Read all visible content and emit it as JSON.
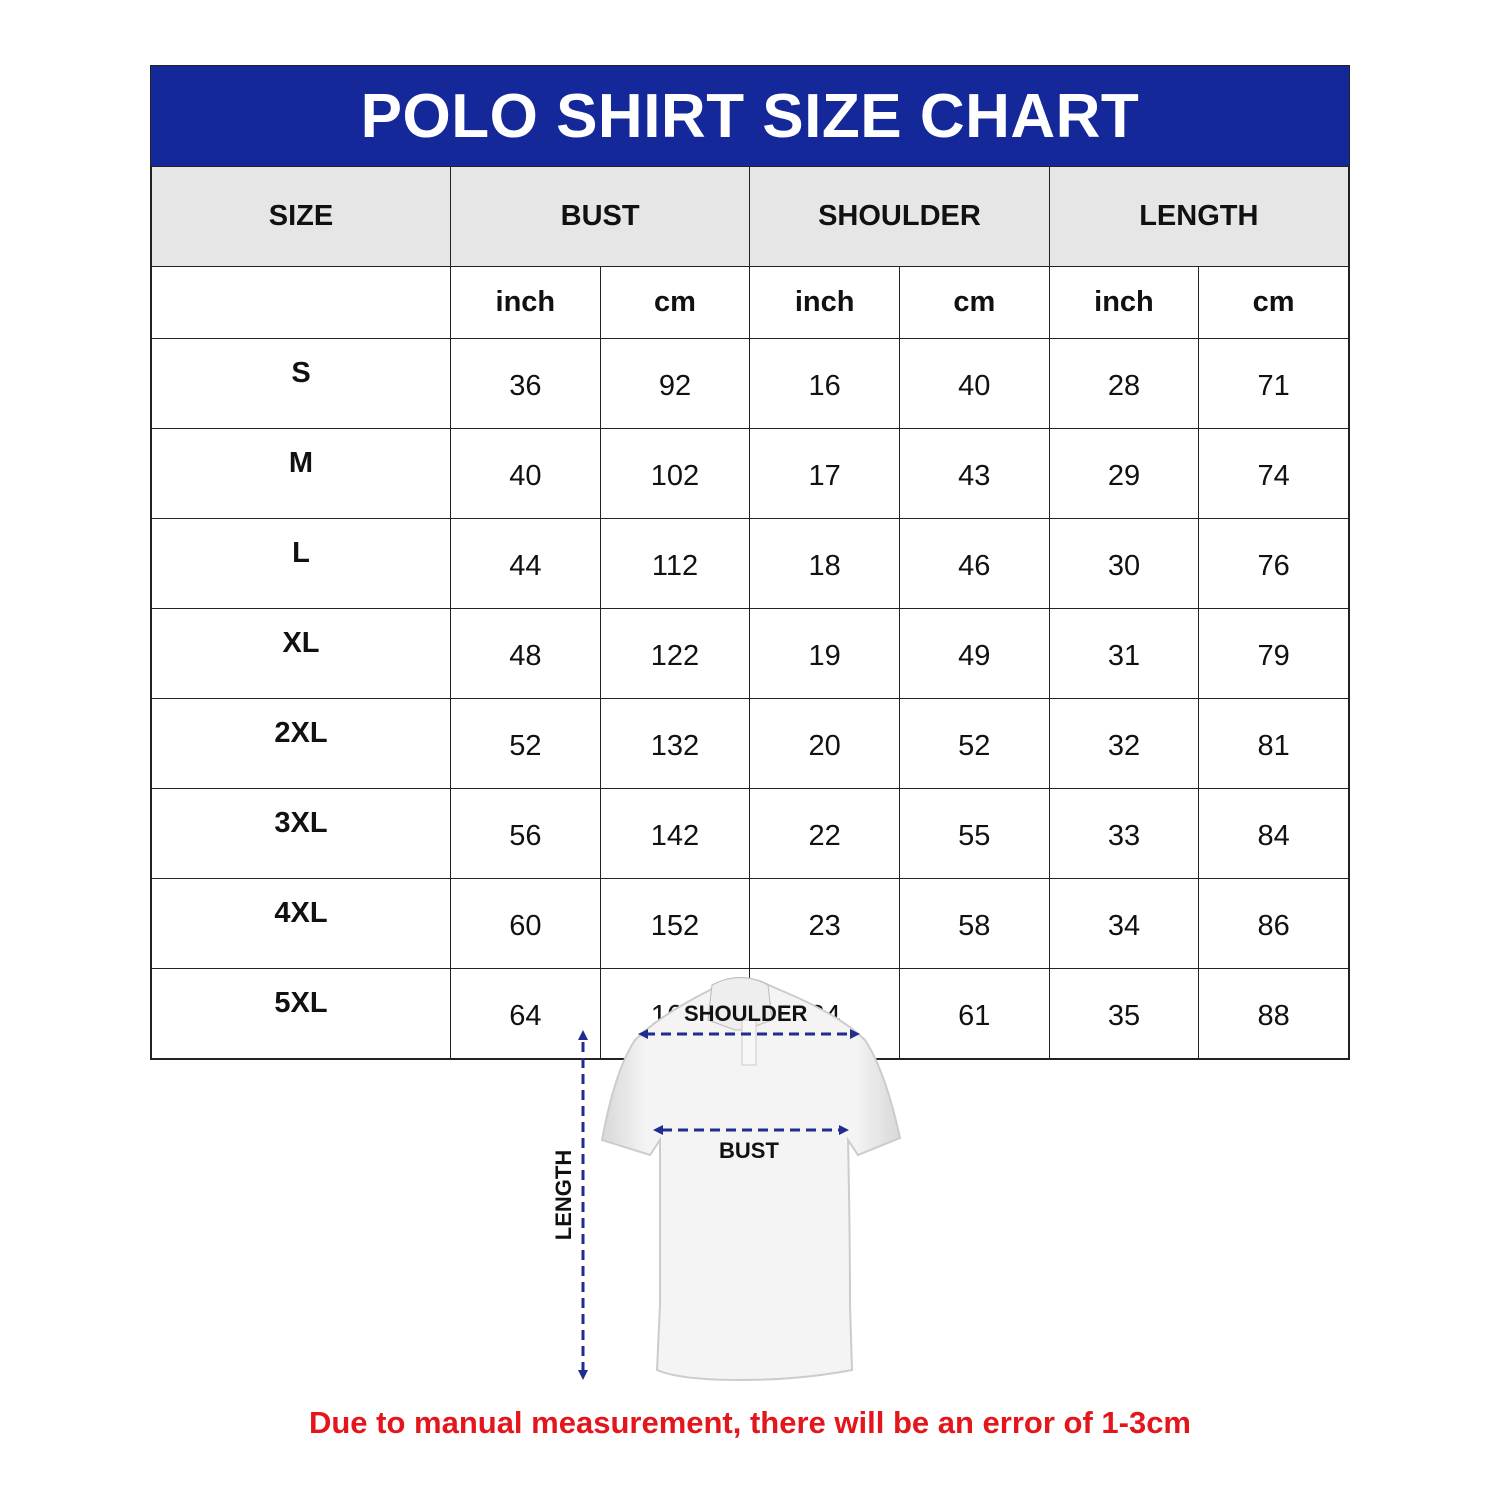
{
  "title": "POLO SHIRT SIZE CHART",
  "columns": {
    "size": "SIZE",
    "bust": "BUST",
    "shoulder": "SHOULDER",
    "length": "LENGTH",
    "units": [
      "inch",
      "cm",
      "inch",
      "cm",
      "inch",
      "cm"
    ]
  },
  "rows": [
    {
      "size": "S",
      "values": [
        "36",
        "92",
        "16",
        "40",
        "28",
        "71"
      ]
    },
    {
      "size": "M",
      "values": [
        "40",
        "102",
        "17",
        "43",
        "29",
        "74"
      ]
    },
    {
      "size": "L",
      "values": [
        "44",
        "112",
        "18",
        "46",
        "30",
        "76"
      ]
    },
    {
      "size": "XL",
      "values": [
        "48",
        "122",
        "19",
        "49",
        "31",
        "79"
      ]
    },
    {
      "size": "2XL",
      "values": [
        "52",
        "132",
        "20",
        "52",
        "32",
        "81"
      ]
    },
    {
      "size": "3XL",
      "values": [
        "56",
        "142",
        "22",
        "55",
        "33",
        "84"
      ]
    },
    {
      "size": "4XL",
      "values": [
        "60",
        "152",
        "23",
        "58",
        "34",
        "86"
      ]
    },
    {
      "size": "5XL",
      "values": [
        "64",
        "162",
        "24",
        "61",
        "35",
        "88"
      ]
    }
  ],
  "diagram": {
    "shoulder_label": "SHOULDER",
    "bust_label": "BUST",
    "length_label": "LENGTH"
  },
  "note": "Due to manual measurement, there will be an error of 1-3cm",
  "colors": {
    "title_bg": "#15289a",
    "header_bg": "#e6e6e6",
    "note": "#e3161c",
    "arrow": "#1f2d8f"
  }
}
